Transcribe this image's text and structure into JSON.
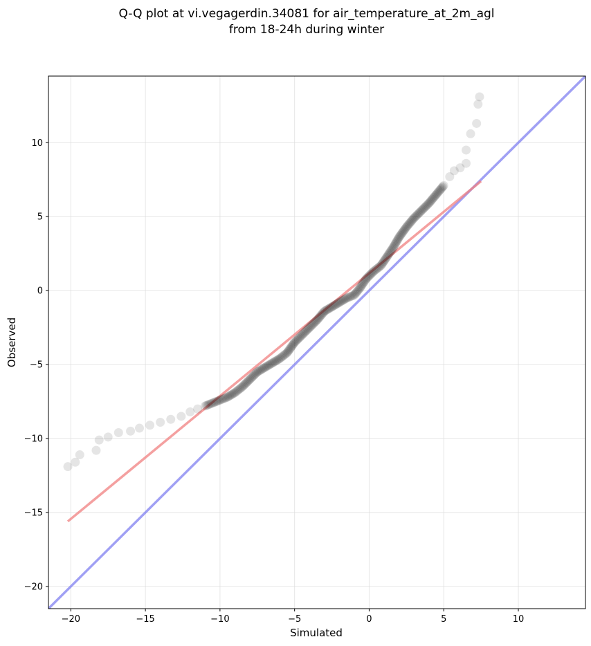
{
  "chart_data": {
    "type": "scatter",
    "title": [
      "Q-Q plot at vi.vegagerdin.34081 for air_temperature_at_2m_agl",
      "from 18-24h during winter"
    ],
    "xlabel": "Simulated",
    "ylabel": "Observed",
    "xlim": [
      -21.5,
      14.5
    ],
    "ylim": [
      -21.5,
      14.5
    ],
    "xticks": [
      -20,
      -15,
      -10,
      -5,
      0,
      5,
      10
    ],
    "yticks": [
      -20,
      -15,
      -10,
      -5,
      0,
      5,
      10
    ],
    "xtick_labels": [
      "−20",
      "−15",
      "−10",
      "−5",
      "0",
      "5",
      "10"
    ],
    "ytick_labels": [
      "−20",
      "−15",
      "−10",
      "−5",
      "0",
      "5",
      "10"
    ],
    "grid": true,
    "series": [
      {
        "kind": "quantile_points",
        "color": "#000000",
        "points": [
          [
            -20.2,
            -11.9
          ],
          [
            -19.7,
            -11.6
          ],
          [
            -19.4,
            -11.1
          ],
          [
            -18.3,
            -10.8
          ],
          [
            -18.1,
            -10.1
          ],
          [
            -17.5,
            -9.9
          ],
          [
            -16.8,
            -9.6
          ],
          [
            -16.0,
            -9.5
          ],
          [
            -15.4,
            -9.3
          ],
          [
            -14.7,
            -9.1
          ],
          [
            -14.0,
            -8.9
          ],
          [
            -13.3,
            -8.7
          ],
          [
            -12.6,
            -8.5
          ],
          [
            -12.0,
            -8.2
          ],
          [
            -11.5,
            -8.0
          ],
          [
            -11.0,
            -7.8
          ],
          [
            -10.5,
            -7.6
          ],
          [
            -10.0,
            -7.4
          ],
          [
            -9.5,
            -7.2
          ],
          [
            -9.0,
            -6.9
          ],
          [
            -8.5,
            -6.5
          ],
          [
            -8.0,
            -6.0
          ],
          [
            -7.5,
            -5.5
          ],
          [
            -7.0,
            -5.2
          ],
          [
            -6.5,
            -4.9
          ],
          [
            -6.0,
            -4.6
          ],
          [
            -5.5,
            -4.2
          ],
          [
            -5.0,
            -3.5
          ],
          [
            -4.5,
            -3.0
          ],
          [
            -4.0,
            -2.5
          ],
          [
            -3.5,
            -2.0
          ],
          [
            -3.0,
            -1.4
          ],
          [
            -2.5,
            -1.1
          ],
          [
            -2.0,
            -0.8
          ],
          [
            -1.5,
            -0.5
          ],
          [
            -1.0,
            -0.3
          ],
          [
            -0.6,
            0.2
          ],
          [
            -0.2,
            0.8
          ],
          [
            0.3,
            1.3
          ],
          [
            0.8,
            1.7
          ],
          [
            1.2,
            2.3
          ],
          [
            1.6,
            2.9
          ],
          [
            2.0,
            3.6
          ],
          [
            2.5,
            4.3
          ],
          [
            3.0,
            4.9
          ],
          [
            3.5,
            5.4
          ],
          [
            4.0,
            5.9
          ],
          [
            4.5,
            6.5
          ],
          [
            5.0,
            7.1
          ],
          [
            5.4,
            7.7
          ],
          [
            5.7,
            8.1
          ],
          [
            6.1,
            8.3
          ],
          [
            6.5,
            8.6
          ],
          [
            6.5,
            9.5
          ],
          [
            6.8,
            10.6
          ],
          [
            7.2,
            11.3
          ],
          [
            7.3,
            12.6
          ],
          [
            7.4,
            13.1
          ]
        ]
      },
      {
        "kind": "fit_line",
        "color": "#f08080",
        "x": [
          -20.2,
          7.5
        ],
        "y": [
          -15.6,
          7.4
        ]
      },
      {
        "kind": "identity_line",
        "color": "#8080f0",
        "x": [
          -21.5,
          14.5
        ],
        "y": [
          -21.5,
          14.5
        ]
      }
    ]
  }
}
